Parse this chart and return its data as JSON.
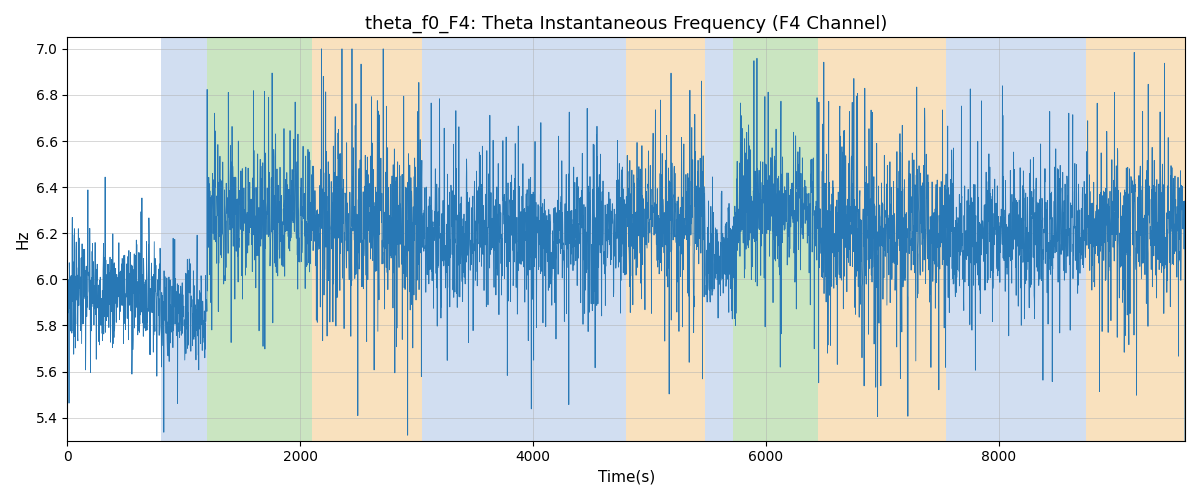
{
  "title": "theta_f0_F4: Theta Instantaneous Frequency (F4 Channel)",
  "xlabel": "Time(s)",
  "ylabel": "Hz",
  "ylim": [
    5.3,
    7.05
  ],
  "xlim": [
    0,
    9600
  ],
  "line_color": "#2878b5",
  "line_width": 0.6,
  "bg_bands": [
    {
      "xstart": 800,
      "xend": 1200,
      "color": "#b3c9e8",
      "alpha": 0.6
    },
    {
      "xstart": 1200,
      "xend": 2100,
      "color": "#97cc84",
      "alpha": 0.5
    },
    {
      "xstart": 2100,
      "xend": 3050,
      "color": "#f5c98a",
      "alpha": 0.55
    },
    {
      "xstart": 3050,
      "xend": 4800,
      "color": "#b3c9e8",
      "alpha": 0.6
    },
    {
      "xstart": 4800,
      "xend": 5480,
      "color": "#f5c98a",
      "alpha": 0.55
    },
    {
      "xstart": 5480,
      "xend": 5720,
      "color": "#b3c9e8",
      "alpha": 0.6
    },
    {
      "xstart": 5720,
      "xend": 6450,
      "color": "#97cc84",
      "alpha": 0.5
    },
    {
      "xstart": 6450,
      "xend": 7550,
      "color": "#f5c98a",
      "alpha": 0.55
    },
    {
      "xstart": 7550,
      "xend": 8750,
      "color": "#b3c9e8",
      "alpha": 0.6
    },
    {
      "xstart": 8750,
      "xend": 9600,
      "color": "#f5c98a",
      "alpha": 0.55
    }
  ],
  "yticks": [
    5.4,
    5.6,
    5.8,
    6.0,
    6.2,
    6.4,
    6.6,
    6.8,
    7.0
  ],
  "xticks": [
    0,
    2000,
    4000,
    6000,
    8000
  ],
  "title_fontsize": 13,
  "seed": 7,
  "n_points": 4800,
  "segments": [
    {
      "xstart": 0,
      "xend": 800,
      "mean": 5.95,
      "std": 0.12,
      "spike_prob": 0.04,
      "spike_amp": 0.25
    },
    {
      "xstart": 800,
      "xend": 1200,
      "mean": 5.85,
      "std": 0.1,
      "spike_prob": 0.03,
      "spike_amp": 0.2
    },
    {
      "xstart": 1200,
      "xend": 2100,
      "mean": 6.3,
      "std": 0.14,
      "spike_prob": 0.08,
      "spike_amp": 0.35
    },
    {
      "xstart": 2100,
      "xend": 3050,
      "mean": 6.25,
      "std": 0.16,
      "spike_prob": 0.1,
      "spike_amp": 0.4
    },
    {
      "xstart": 3050,
      "xend": 4800,
      "mean": 6.2,
      "std": 0.13,
      "spike_prob": 0.07,
      "spike_amp": 0.3
    },
    {
      "xstart": 4800,
      "xend": 5480,
      "mean": 6.25,
      "std": 0.14,
      "spike_prob": 0.08,
      "spike_amp": 0.35
    },
    {
      "xstart": 5480,
      "xend": 5720,
      "mean": 6.1,
      "std": 0.1,
      "spike_prob": 0.04,
      "spike_amp": 0.2
    },
    {
      "xstart": 5720,
      "xend": 6450,
      "mean": 6.3,
      "std": 0.14,
      "spike_prob": 0.08,
      "spike_amp": 0.35
    },
    {
      "xstart": 6450,
      "xend": 7550,
      "mean": 6.2,
      "std": 0.15,
      "spike_prob": 0.09,
      "spike_amp": 0.38
    },
    {
      "xstart": 7550,
      "xend": 8750,
      "mean": 6.2,
      "std": 0.13,
      "spike_prob": 0.07,
      "spike_amp": 0.3
    },
    {
      "xstart": 8750,
      "xend": 9600,
      "mean": 6.25,
      "std": 0.14,
      "spike_prob": 0.08,
      "spike_amp": 0.35
    }
  ]
}
